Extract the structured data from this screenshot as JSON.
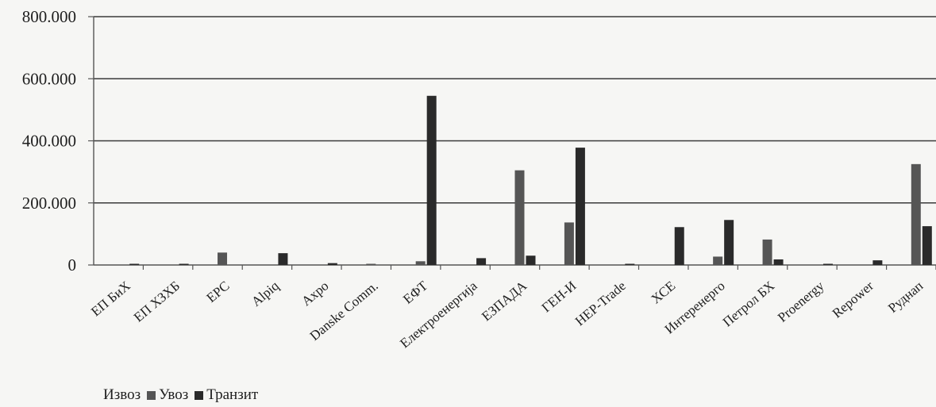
{
  "colors": {
    "background": "#f6f6f4",
    "gridline": "#3a3a3a",
    "axis": "#555555",
    "export": "#9c9c9c",
    "import": "#555555",
    "transit": "#2a2a2a"
  },
  "chart_data": {
    "type": "bar",
    "title": "",
    "xlabel": "",
    "ylabel": "",
    "ylim": [
      0,
      800000
    ],
    "yticks": [
      0,
      200000,
      400000,
      600000,
      800000
    ],
    "ytick_labels": [
      "0",
      "200.000",
      "400.000",
      "600.000",
      "800.000"
    ],
    "grid": true,
    "legend_position": "bottom-left",
    "categories": [
      "ЕП БиХ",
      "ЕП ХЗХБ",
      "EPC",
      "Alpiq",
      "Axpo",
      "Danske Comm.",
      "ЕФТ",
      "Електроенергија",
      "ЕЗПАДА",
      "ГЕН-И",
      "HEP-Trade",
      "ХСЕ",
      "Интеренерго",
      "Петрол БХ",
      "Proenergy",
      "Repower",
      "Руднап"
    ],
    "series": [
      {
        "name": "Извоз",
        "values": [
          0,
          0,
          0,
          0,
          0,
          0,
          0,
          0,
          0,
          0,
          0,
          0,
          0,
          0,
          0,
          0,
          0
        ]
      },
      {
        "name": "Увоз",
        "values": [
          0,
          0,
          40000,
          0,
          0,
          3000,
          12000,
          0,
          305000,
          137000,
          0,
          0,
          27000,
          82000,
          0,
          0,
          325000
        ]
      },
      {
        "name": "Транзит",
        "values": [
          2000,
          1000,
          0,
          38000,
          6000,
          0,
          545000,
          22000,
          30000,
          378000,
          2000,
          122000,
          145000,
          18000,
          2000,
          15000,
          125000
        ]
      }
    ]
  }
}
